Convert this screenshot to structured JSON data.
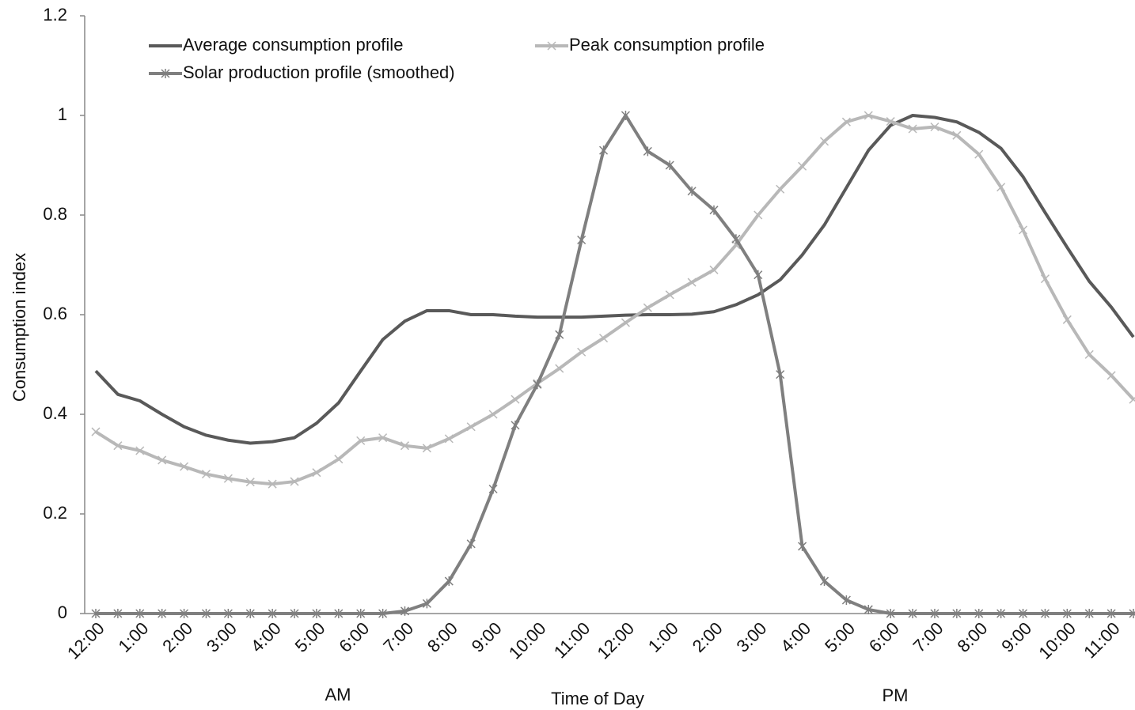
{
  "chart_data": {
    "type": "line",
    "y_label": "Consumption index",
    "x_label": "Time of Day",
    "annotations": [
      "AM",
      "PM"
    ],
    "categories": [
      "12:00",
      null,
      "1:00",
      null,
      "2:00",
      null,
      "3:00",
      null,
      "4:00",
      null,
      "5:00",
      null,
      "6:00",
      null,
      "7:00",
      null,
      "8:00",
      null,
      "9:00",
      null,
      "10:00",
      null,
      "11:00",
      null,
      "12:00",
      null,
      "1:00",
      null,
      "2:00",
      null,
      "3:00",
      null,
      "4:00",
      null,
      "5:00",
      null,
      "6:00",
      null,
      "7:00",
      null,
      "8:00",
      null,
      "9:00",
      null,
      "10:00",
      null,
      "11:00",
      null
    ],
    "series": [
      {
        "name": "Average consumption profile",
        "color": "#595959",
        "marker": "none",
        "values": [
          0.487,
          0.44,
          0.427,
          0.4,
          0.375,
          0.358,
          0.348,
          0.342,
          0.345,
          0.353,
          0.382,
          0.423,
          0.487,
          0.55,
          0.587,
          0.608,
          0.608,
          0.6,
          0.6,
          0.597,
          0.595,
          0.595,
          0.595,
          0.597,
          0.599,
          0.6,
          0.6,
          0.601,
          0.606,
          0.62,
          0.64,
          0.67,
          0.72,
          0.78,
          0.855,
          0.93,
          0.98,
          1.0,
          0.996,
          0.987,
          0.966,
          0.934,
          0.877,
          0.805,
          0.735,
          0.667,
          0.615,
          0.555
        ]
      },
      {
        "name": "Peak consumption profile",
        "color": "#b8b8b8",
        "marker": "x",
        "values": [
          0.365,
          0.337,
          0.327,
          0.308,
          0.295,
          0.28,
          0.271,
          0.264,
          0.26,
          0.265,
          0.283,
          0.31,
          0.347,
          0.353,
          0.337,
          0.332,
          0.351,
          0.375,
          0.4,
          0.43,
          0.462,
          0.492,
          0.525,
          0.553,
          0.584,
          0.614,
          0.64,
          0.665,
          0.69,
          0.74,
          0.8,
          0.852,
          0.898,
          0.948,
          0.987,
          1.0,
          0.988,
          0.973,
          0.977,
          0.96,
          0.922,
          0.856,
          0.77,
          0.672,
          0.59,
          0.52,
          0.478,
          0.43
        ]
      },
      {
        "name": "Solar production profile (smoothed)",
        "color": "#7f7f7f",
        "marker": "star",
        "values": [
          0,
          0,
          0,
          0,
          0,
          0,
          0,
          0,
          0,
          0,
          0,
          0,
          0,
          0,
          0.005,
          0.02,
          0.065,
          0.14,
          0.25,
          0.378,
          0.46,
          0.56,
          0.75,
          0.93,
          1.0,
          0.928,
          0.9,
          0.848,
          0.81,
          0.752,
          0.68,
          0.48,
          0.135,
          0.065,
          0.027,
          0.008,
          0,
          0,
          0,
          0,
          0,
          0,
          0,
          0,
          0,
          0,
          0,
          0
        ]
      }
    ],
    "ylim": [
      0,
      1.2
    ],
    "yticks": [
      0,
      0.2,
      0.4,
      0.6,
      0.8,
      1,
      1.2
    ],
    "grid": false,
    "legend": "top-left"
  }
}
